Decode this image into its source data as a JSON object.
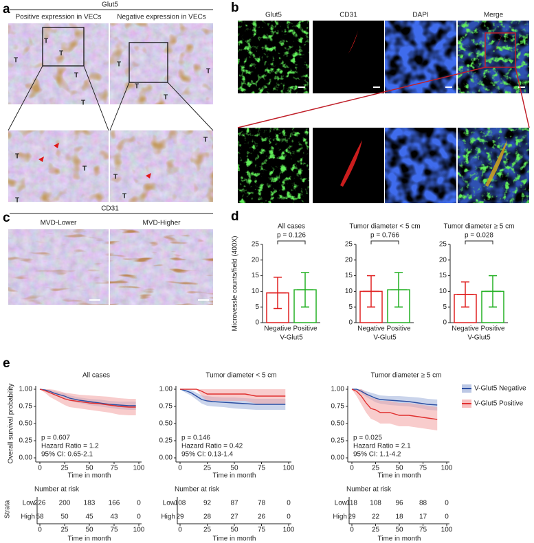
{
  "panel_a": {
    "label": "a",
    "title": "Glut5",
    "left": "Positive expression in VECs",
    "right": "Negative expression in VECs",
    "tumor_mark": "T"
  },
  "panel_b": {
    "label": "b",
    "channels": [
      {
        "name": "Glut5",
        "color": "#1fbf1f"
      },
      {
        "name": "CD31",
        "color": "#e02020"
      },
      {
        "name": "DAPI",
        "color": "#2a6fe0"
      },
      {
        "name": "Merge",
        "color": "#000000"
      }
    ]
  },
  "panel_c": {
    "label": "c",
    "title": "CD31",
    "left": "MVD-Lower",
    "right": "MVD-Higher"
  },
  "panel_d": {
    "label": "d",
    "ylabel": "Microvessle counts/field (400X)",
    "charts": [
      {
        "type": "bar",
        "title": "All cases",
        "annotation": "p = 0.126",
        "categories": [
          "Negative",
          "Positive"
        ],
        "xlabel": "V-Glut5",
        "values": [
          9.5,
          10.5
        ],
        "errors": [
          5,
          5.5
        ],
        "colors": [
          "#e02020",
          "#22b022"
        ],
        "ylim": [
          0,
          25
        ],
        "yticks": [
          0,
          5,
          10,
          15,
          20,
          25
        ]
      },
      {
        "type": "bar",
        "title": "Tumor diameter < 5 cm",
        "annotation": "p = 0.766",
        "categories": [
          "Negative",
          "Positive"
        ],
        "xlabel": "V-Glut5",
        "values": [
          10,
          10.5
        ],
        "errors": [
          5,
          5.5
        ],
        "colors": [
          "#e02020",
          "#22b022"
        ],
        "ylim": [
          0,
          25
        ],
        "yticks": [
          0,
          5,
          10,
          15,
          20,
          25
        ]
      },
      {
        "type": "bar",
        "title": "Tumor diameter ≥ 5 cm",
        "annotation": "p = 0.028",
        "categories": [
          "Negative",
          "Positive"
        ],
        "xlabel": "V-Glut5",
        "values": [
          9,
          10
        ],
        "errors": [
          4,
          5
        ],
        "colors": [
          "#e02020",
          "#22b022"
        ],
        "ylim": [
          0,
          25
        ],
        "yticks": [
          0,
          5,
          10,
          15,
          20,
          25
        ]
      }
    ]
  },
  "panel_e": {
    "label": "e",
    "ylabel": "Overall survival probability",
    "legend": [
      {
        "name": "V-Glut5 Negative",
        "color": "#2b4ea2",
        "band": "#9fb0da"
      },
      {
        "name": "V-Glut5 Positive",
        "color": "#e0302f",
        "band": "#f3a3a3"
      }
    ],
    "charts": [
      {
        "type": "line",
        "title": "All cases",
        "annotations": [
          "p = 0.607",
          "Hazard Ratio = 1.2",
          "95% CI: 0.65-2.1"
        ],
        "xlabel": "Time in month",
        "xlim": [
          0,
          100
        ],
        "xticks": [
          0,
          25,
          50,
          75,
          100
        ],
        "ylim": [
          0,
          1
        ],
        "yticks": [
          {
            "value": 0,
            "label": "0.00"
          },
          {
            "value": 0.25,
            "label": "0.25"
          },
          {
            "value": 0.5,
            "label": "0.50"
          },
          {
            "value": 0.75,
            "label": "0.75"
          },
          {
            "value": 1,
            "label": "1.00"
          }
        ],
        "series": [
          {
            "x": [
              0,
              5,
              10,
              15,
              20,
              25,
              30,
              40,
              50,
              60,
              70,
              80,
              90,
              97
            ],
            "values": [
              1,
              0.99,
              0.97,
              0.94,
              0.92,
              0.9,
              0.87,
              0.84,
              0.82,
              0.8,
              0.78,
              0.77,
              0.76,
              0.76
            ],
            "lower": [
              1,
              0.98,
              0.95,
              0.91,
              0.88,
              0.86,
              0.83,
              0.8,
              0.77,
              0.75,
              0.73,
              0.71,
              0.7,
              0.7
            ],
            "upper": [
              1,
              1,
              0.99,
              0.97,
              0.95,
              0.94,
              0.91,
              0.88,
              0.86,
              0.85,
              0.83,
              0.82,
              0.82,
              0.82
            ]
          },
          {
            "x": [
              0,
              5,
              10,
              15,
              20,
              25,
              30,
              40,
              50,
              60,
              70,
              80,
              90,
              97
            ],
            "values": [
              1,
              0.98,
              0.95,
              0.92,
              0.89,
              0.86,
              0.84,
              0.82,
              0.8,
              0.79,
              0.77,
              0.75,
              0.74,
              0.74
            ],
            "lower": [
              1,
              0.95,
              0.89,
              0.85,
              0.81,
              0.77,
              0.74,
              0.72,
              0.7,
              0.68,
              0.66,
              0.63,
              0.62,
              0.62
            ],
            "upper": [
              1,
              1,
              1,
              0.99,
              0.97,
              0.95,
              0.94,
              0.92,
              0.91,
              0.9,
              0.89,
              0.87,
              0.86,
              0.86
            ]
          }
        ],
        "risk": {
          "title": "Number at risk",
          "strata_label": "Strata",
          "rows": [
            {
              "name": "Low",
              "values": [
                226,
                200,
                183,
                166,
                0
              ]
            },
            {
              "name": "High",
              "values": [
                58,
                50,
                45,
                43,
                0
              ]
            }
          ],
          "xlabel": "Time in month"
        }
      },
      {
        "type": "line",
        "title": "Tumor diameter < 5 cm",
        "annotations": [
          "p = 0.146",
          "Hazard Ratio = 0.42",
          "95% CI: 0.13-1.4"
        ],
        "xlabel": "Time in month",
        "xlim": [
          0,
          100
        ],
        "xticks": [
          0,
          25,
          50,
          75,
          100
        ],
        "ylim": [
          0,
          1
        ],
        "yticks": [
          {
            "value": 0,
            "label": "0.00"
          },
          {
            "value": 0.25,
            "label": "0.25"
          },
          {
            "value": 0.5,
            "label": "0.50"
          },
          {
            "value": 0.75,
            "label": "0.75"
          },
          {
            "value": 1,
            "label": "1.00"
          }
        ],
        "series": [
          {
            "x": [
              0,
              5,
              10,
              15,
              20,
              25,
              30,
              40,
              50,
              60,
              70,
              80,
              90,
              97
            ],
            "values": [
              1,
              0.98,
              0.95,
              0.9,
              0.85,
              0.83,
              0.82,
              0.81,
              0.8,
              0.79,
              0.78,
              0.78,
              0.78,
              0.78
            ],
            "lower": [
              1,
              0.95,
              0.91,
              0.85,
              0.79,
              0.76,
              0.75,
              0.74,
              0.72,
              0.71,
              0.7,
              0.7,
              0.7,
              0.7
            ],
            "upper": [
              1,
              1,
              0.99,
              0.95,
              0.91,
              0.9,
              0.89,
              0.88,
              0.88,
              0.87,
              0.86,
              0.86,
              0.86,
              0.86
            ]
          },
          {
            "x": [
              0,
              5,
              10,
              15,
              20,
              25,
              30,
              40,
              50,
              60,
              70,
              80,
              90,
              97
            ],
            "values": [
              1,
              1,
              1,
              1,
              0.97,
              0.93,
              0.93,
              0.93,
              0.93,
              0.93,
              0.9,
              0.9,
              0.9,
              0.9
            ],
            "lower": [
              1,
              1,
              1,
              1,
              0.9,
              0.83,
              0.83,
              0.83,
              0.83,
              0.83,
              0.79,
              0.79,
              0.79,
              0.79
            ],
            "upper": [
              1,
              1,
              1,
              1,
              1,
              1,
              1,
              1,
              1,
              1,
              1,
              1,
              1,
              1
            ]
          }
        ],
        "risk": {
          "title": "Number at risk",
          "strata_label": "Strata",
          "rows": [
            {
              "name": "Low",
              "values": [
                108,
                92,
                87,
                78,
                0
              ]
            },
            {
              "name": "High",
              "values": [
                29,
                28,
                27,
                26,
                0
              ]
            }
          ],
          "xlabel": "Time in month"
        }
      },
      {
        "type": "line",
        "title": "Tumor diameter ≥ 5 cm",
        "annotations": [
          "p = 0.025",
          "Hazard Ratio = 2.1",
          "95% CI: 1.1-4.2"
        ],
        "xlabel": "Time in month",
        "xlim": [
          0,
          100
        ],
        "xticks": [
          0,
          25,
          50,
          75,
          100
        ],
        "ylim": [
          0,
          1
        ],
        "yticks": [
          {
            "value": 0,
            "label": "0.00"
          },
          {
            "value": 0.25,
            "label": "0.25"
          },
          {
            "value": 0.5,
            "label": "0.50"
          },
          {
            "value": 0.75,
            "label": "0.75"
          },
          {
            "value": 1,
            "label": "1.00"
          }
        ],
        "series": [
          {
            "x": [
              0,
              5,
              10,
              15,
              20,
              25,
              30,
              40,
              50,
              60,
              70,
              80,
              90
            ],
            "values": [
              1,
              1,
              0.97,
              0.93,
              0.9,
              0.87,
              0.85,
              0.84,
              0.83,
              0.82,
              0.8,
              0.78,
              0.77
            ],
            "lower": [
              1,
              1,
              0.94,
              0.89,
              0.85,
              0.81,
              0.79,
              0.77,
              0.76,
              0.75,
              0.73,
              0.7,
              0.69
            ],
            "upper": [
              1,
              1,
              1,
              0.97,
              0.95,
              0.93,
              0.91,
              0.9,
              0.9,
              0.89,
              0.88,
              0.86,
              0.85
            ]
          },
          {
            "x": [
              0,
              5,
              10,
              15,
              20,
              25,
              30,
              40,
              50,
              60,
              70,
              80,
              90
            ],
            "values": [
              1,
              0.97,
              0.9,
              0.8,
              0.72,
              0.7,
              0.66,
              0.66,
              0.62,
              0.62,
              0.6,
              0.58,
              0.56
            ],
            "lower": [
              1,
              0.9,
              0.78,
              0.66,
              0.57,
              0.54,
              0.5,
              0.5,
              0.46,
              0.46,
              0.44,
              0.42,
              0.4
            ],
            "upper": [
              1,
              1,
              1,
              0.95,
              0.88,
              0.86,
              0.83,
              0.83,
              0.8,
              0.8,
              0.78,
              0.76,
              0.74
            ]
          }
        ],
        "risk": {
          "title": "Number at risk",
          "strata_label": "Strata",
          "rows": [
            {
              "name": "Low",
              "values": [
                118,
                108,
                96,
                88,
                0
              ]
            },
            {
              "name": "High",
              "values": [
                29,
                22,
                18,
                17,
                0
              ]
            }
          ],
          "xlabel": "Time in month"
        }
      }
    ]
  }
}
